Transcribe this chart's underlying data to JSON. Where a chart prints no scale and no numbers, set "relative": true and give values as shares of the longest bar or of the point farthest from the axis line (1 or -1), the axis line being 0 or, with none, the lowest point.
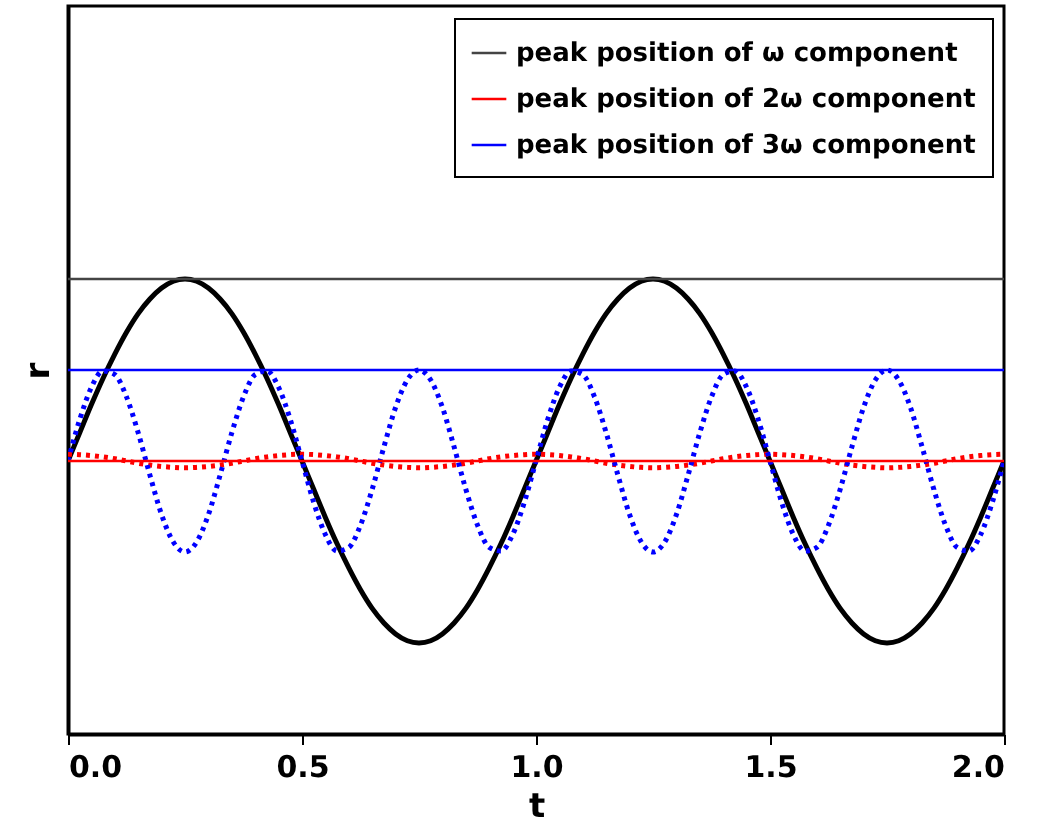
{
  "chart_data": {
    "type": "line",
    "xlabel": "t",
    "ylabel": "r",
    "relative": true,
    "legend": "top right",
    "grid": false,
    "xlim": [
      0,
      2
    ],
    "xticks": [
      {
        "value": 0,
        "label": "0.0"
      },
      {
        "value": 0.5,
        "label": "0.5"
      },
      {
        "value": 1,
        "label": "1.0"
      },
      {
        "value": 1.5,
        "label": "1.5"
      },
      {
        "value": 2,
        "label": "2.0"
      }
    ],
    "x": [
      0,
      0.025,
      0.05,
      0.075,
      0.1,
      0.125,
      0.15,
      0.175,
      0.2,
      0.225,
      0.25,
      0.275,
      0.3,
      0.325,
      0.35,
      0.375,
      0.4,
      0.425,
      0.45,
      0.475,
      0.5,
      0.525,
      0.55,
      0.575,
      0.6,
      0.625,
      0.65,
      0.675,
      0.7,
      0.725,
      0.75,
      0.775,
      0.8,
      0.825,
      0.85,
      0.875,
      0.9,
      0.925,
      0.95,
      0.975,
      1,
      1.025,
      1.05,
      1.075,
      1.1,
      1.125,
      1.15,
      1.175,
      1.2,
      1.225,
      1.25,
      1.275,
      1.3,
      1.325,
      1.35,
      1.375,
      1.4,
      1.425,
      1.45,
      1.475,
      1.5,
      1.525,
      1.55,
      1.575,
      1.6,
      1.625,
      1.65,
      1.675,
      1.7,
      1.725,
      1.75,
      1.775,
      1.8,
      1.825,
      1.85,
      1.875,
      1.9,
      1.925,
      1.95,
      1.975,
      2
    ],
    "ref_lines": [
      {
        "axis": "y",
        "value": 1,
        "label": "peak position of ω component",
        "color": "#444444",
        "line_style": "solid"
      },
      {
        "axis": "y",
        "value": 0.6,
        "label": "peak position of 2ω component",
        "color": "#ff0000",
        "line_style": "solid"
      },
      {
        "axis": "y",
        "value": 0.8,
        "label": "peak position of 3ω component",
        "color": "#0000ff",
        "line_style": "solid"
      }
    ],
    "series": [
      {
        "color": "#000000",
        "line_style": "solid",
        "values": [
          0.6,
          0.662,
          0.724,
          0.782,
          0.835,
          0.883,
          0.924,
          0.956,
          0.98,
          0.995,
          1.0,
          0.995,
          0.98,
          0.956,
          0.924,
          0.883,
          0.835,
          0.782,
          0.724,
          0.662,
          0.6,
          0.538,
          0.476,
          0.418,
          0.365,
          0.317,
          0.276,
          0.244,
          0.22,
          0.205,
          0.2,
          0.205,
          0.22,
          0.244,
          0.276,
          0.317,
          0.365,
          0.418,
          0.476,
          0.538,
          0.6,
          0.662,
          0.724,
          0.782,
          0.835,
          0.883,
          0.924,
          0.956,
          0.98,
          0.995,
          1.0,
          0.995,
          0.98,
          0.956,
          0.924,
          0.883,
          0.835,
          0.782,
          0.724,
          0.662,
          0.6,
          0.538,
          0.476,
          0.418,
          0.365,
          0.317,
          0.276,
          0.244,
          0.22,
          0.205,
          0.2,
          0.205,
          0.22,
          0.244,
          0.276,
          0.317,
          0.365,
          0.418,
          0.476,
          0.538,
          0.6
        ]
      },
      {
        "color": "#ff0000",
        "line_style": "dotted",
        "values": [
          0.615,
          0.614,
          0.612,
          0.609,
          0.605,
          0.6,
          0.595,
          0.591,
          0.588,
          0.586,
          0.585,
          0.586,
          0.588,
          0.591,
          0.595,
          0.6,
          0.605,
          0.609,
          0.612,
          0.614,
          0.615,
          0.614,
          0.612,
          0.609,
          0.605,
          0.6,
          0.595,
          0.591,
          0.588,
          0.586,
          0.585,
          0.586,
          0.588,
          0.591,
          0.595,
          0.6,
          0.605,
          0.609,
          0.612,
          0.614,
          0.615,
          0.614,
          0.612,
          0.609,
          0.605,
          0.6,
          0.595,
          0.591,
          0.588,
          0.586,
          0.585,
          0.586,
          0.588,
          0.591,
          0.595,
          0.6,
          0.605,
          0.609,
          0.612,
          0.614,
          0.615,
          0.614,
          0.612,
          0.609,
          0.605,
          0.6,
          0.595,
          0.591,
          0.588,
          0.586,
          0.585,
          0.586,
          0.588,
          0.591,
          0.595,
          0.6,
          0.605,
          0.609,
          0.612,
          0.614,
          0.615
        ]
      },
      {
        "color": "#0000ff",
        "line_style": "dotted",
        "values": [
          0.6,
          0.691,
          0.762,
          0.798,
          0.79,
          0.741,
          0.662,
          0.569,
          0.482,
          0.422,
          0.4,
          0.422,
          0.482,
          0.569,
          0.662,
          0.741,
          0.79,
          0.798,
          0.762,
          0.691,
          0.6,
          0.509,
          0.438,
          0.402,
          0.41,
          0.459,
          0.538,
          0.631,
          0.718,
          0.778,
          0.8,
          0.778,
          0.718,
          0.631,
          0.538,
          0.459,
          0.41,
          0.402,
          0.438,
          0.509,
          0.6,
          0.691,
          0.762,
          0.798,
          0.79,
          0.741,
          0.662,
          0.569,
          0.482,
          0.422,
          0.4,
          0.422,
          0.482,
          0.569,
          0.662,
          0.741,
          0.79,
          0.798,
          0.762,
          0.691,
          0.6,
          0.509,
          0.438,
          0.402,
          0.41,
          0.459,
          0.538,
          0.631,
          0.718,
          0.778,
          0.8,
          0.778,
          0.718,
          0.631,
          0.538,
          0.459,
          0.41,
          0.402,
          0.438,
          0.509,
          0.6
        ]
      }
    ]
  }
}
